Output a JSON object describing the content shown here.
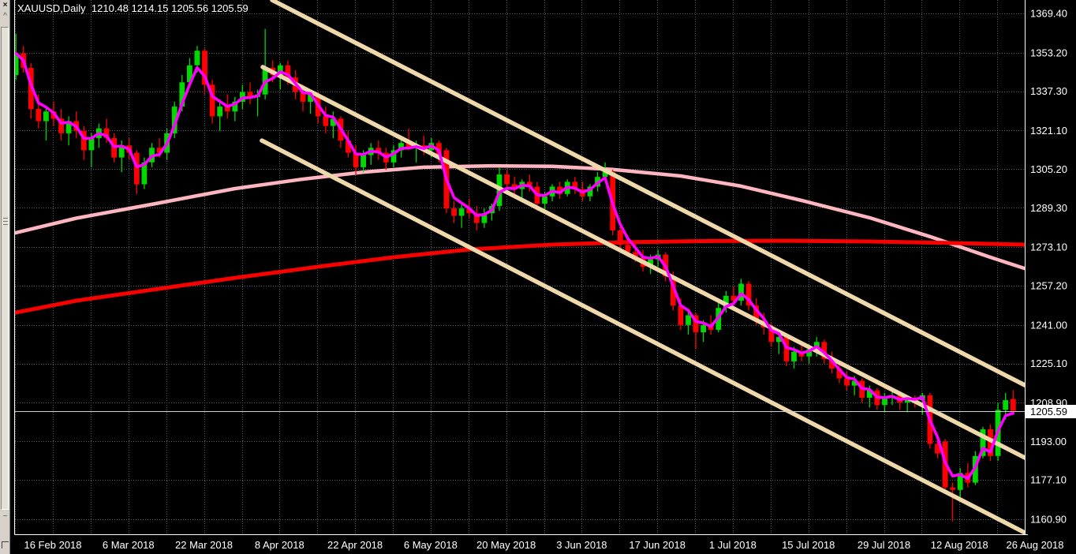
{
  "window": {
    "title": "XAUUSD,Daily  1210.48 1214.15 1205.56 1205.59"
  },
  "side_panel": {
    "close_icon": "×",
    "collapse_icon": "^",
    "bottom_icon": "~"
  },
  "colors": {
    "background": "#000000",
    "grid": "#52616B",
    "bull": "#00D900",
    "bear": "#FF0000",
    "fast_ma": "#FF00FF",
    "slow_ma_pink": "#FFB6C1",
    "long_ma_red": "#F70000",
    "trendline": "#EFD9AB",
    "axis_text": "#FFFFFF",
    "price_line": "#C8CDD0",
    "price_box_bg": "#FFFFFF",
    "price_box_text": "#000000"
  },
  "chart_data": {
    "type": "candlestick",
    "symbol": "XAUUSD",
    "timeframe": "Daily",
    "title": "XAUUSD,Daily",
    "ohlc_readout": {
      "open": "1210.48",
      "high": "1214.15",
      "low": "1205.56",
      "close": "1205.59"
    },
    "y_axis": {
      "ticks": [
        "1369.40",
        "1353.20",
        "1337.30",
        "1321.10",
        "1305.20",
        "1289.30",
        "1273.10",
        "1257.20",
        "1241.00",
        "1225.10",
        "1208.90",
        "1193.00",
        "1177.10",
        "1160.90"
      ],
      "current_price": "1205.59"
    },
    "x_axis": {
      "labels": [
        "16 Feb 2018",
        "6 Mar 2018",
        "22 Mar 2018",
        "8 Apr 2018",
        "22 Apr 2018",
        "6 May 2018",
        "20 May 2018",
        "3 Jun 2018",
        "17 Jun 2018",
        "1 Jul 2018",
        "15 Jul 2018",
        "29 Jul 2018",
        "12 Aug 2018",
        "26 Aug 2018"
      ]
    },
    "grid": {
      "visible": true,
      "style": "dotted"
    },
    "candles": [
      [
        1344,
        1361,
        1342,
        1353
      ],
      [
        1353,
        1356,
        1345,
        1347
      ],
      [
        1347,
        1349,
        1326,
        1330
      ],
      [
        1330,
        1336,
        1322,
        1325
      ],
      [
        1325,
        1331,
        1317,
        1329
      ],
      [
        1329,
        1333,
        1323,
        1326
      ],
      [
        1326,
        1330,
        1317,
        1320
      ],
      [
        1320,
        1327,
        1315,
        1325
      ],
      [
        1325,
        1329,
        1318,
        1321
      ],
      [
        1321,
        1323,
        1309,
        1313
      ],
      [
        1313,
        1320,
        1306,
        1318
      ],
      [
        1318,
        1324,
        1314,
        1322
      ],
      [
        1322,
        1326,
        1316,
        1318
      ],
      [
        1318,
        1320,
        1308,
        1310
      ],
      [
        1310,
        1317,
        1304,
        1315
      ],
      [
        1315,
        1318,
        1309,
        1312
      ],
      [
        1312,
        1313,
        1295,
        1299
      ],
      [
        1299,
        1310,
        1297,
        1308
      ],
      [
        1308,
        1316,
        1306,
        1314
      ],
      [
        1314,
        1318,
        1310,
        1312
      ],
      [
        1312,
        1322,
        1309,
        1320
      ],
      [
        1320,
        1333,
        1318,
        1331
      ],
      [
        1331,
        1344,
        1329,
        1341
      ],
      [
        1341,
        1351,
        1339,
        1348
      ],
      [
        1348,
        1356,
        1345,
        1354
      ],
      [
        1354,
        1355,
        1336,
        1340
      ],
      [
        1340,
        1342,
        1324,
        1327
      ],
      [
        1327,
        1334,
        1321,
        1331
      ],
      [
        1331,
        1336,
        1326,
        1329
      ],
      [
        1329,
        1335,
        1325,
        1333
      ],
      [
        1333,
        1340,
        1330,
        1337
      ],
      [
        1337,
        1341,
        1332,
        1335
      ],
      [
        1335,
        1338,
        1327,
        1336
      ],
      [
        1336,
        1363,
        1334,
        1347
      ],
      [
        1347,
        1350,
        1341,
        1344
      ],
      [
        1344,
        1349,
        1338,
        1348
      ],
      [
        1348,
        1350,
        1340,
        1343
      ],
      [
        1343,
        1346,
        1334,
        1337
      ],
      [
        1337,
        1340,
        1329,
        1333
      ],
      [
        1333,
        1338,
        1328,
        1336
      ],
      [
        1336,
        1337,
        1324,
        1327
      ],
      [
        1327,
        1331,
        1320,
        1323
      ],
      [
        1323,
        1329,
        1318,
        1326
      ],
      [
        1326,
        1327,
        1314,
        1317
      ],
      [
        1317,
        1321,
        1310,
        1312
      ],
      [
        1312,
        1315,
        1303,
        1306
      ],
      [
        1306,
        1313,
        1304,
        1311
      ],
      [
        1311,
        1316,
        1307,
        1314
      ],
      [
        1314,
        1317,
        1309,
        1312
      ],
      [
        1312,
        1314,
        1305,
        1308
      ],
      [
        1308,
        1315,
        1306,
        1313
      ],
      [
        1313,
        1318,
        1310,
        1316
      ],
      [
        1316,
        1322,
        1313,
        1314
      ],
      [
        1314,
        1317,
        1308,
        1315
      ],
      [
        1315,
        1319,
        1311,
        1313
      ],
      [
        1313,
        1318,
        1310,
        1316
      ],
      [
        1316,
        1317,
        1308,
        1311
      ],
      [
        1313,
        1314,
        1287,
        1289
      ],
      [
        1289,
        1292,
        1283,
        1286
      ],
      [
        1286,
        1291,
        1281,
        1289
      ],
      [
        1289,
        1293,
        1285,
        1287
      ],
      [
        1287,
        1290,
        1280,
        1283
      ],
      [
        1283,
        1289,
        1281,
        1287
      ],
      [
        1287,
        1291,
        1284,
        1290
      ],
      [
        1290,
        1306,
        1288,
        1303
      ],
      [
        1303,
        1305,
        1297,
        1299
      ],
      [
        1299,
        1302,
        1294,
        1297
      ],
      [
        1297,
        1301,
        1293,
        1300
      ],
      [
        1300,
        1303,
        1296,
        1298
      ],
      [
        1298,
        1300,
        1288,
        1291
      ],
      [
        1291,
        1296,
        1287,
        1294
      ],
      [
        1294,
        1299,
        1292,
        1298
      ],
      [
        1298,
        1300,
        1293,
        1295
      ],
      [
        1295,
        1301,
        1294,
        1300
      ],
      [
        1300,
        1302,
        1295,
        1297
      ],
      [
        1297,
        1300,
        1292,
        1294
      ],
      [
        1294,
        1299,
        1292,
        1298
      ],
      [
        1298,
        1304,
        1296,
        1302
      ],
      [
        1302,
        1308,
        1300,
        1304
      ],
      [
        1304,
        1305,
        1278,
        1280
      ],
      [
        1280,
        1283,
        1272,
        1274
      ],
      [
        1274,
        1278,
        1269,
        1271
      ],
      [
        1271,
        1275,
        1267,
        1269
      ],
      [
        1269,
        1272,
        1263,
        1265
      ],
      [
        1265,
        1270,
        1262,
        1268
      ],
      [
        1268,
        1272,
        1265,
        1270
      ],
      [
        1270,
        1271,
        1259,
        1261
      ],
      [
        1261,
        1263,
        1247,
        1249
      ],
      [
        1249,
        1252,
        1239,
        1241
      ],
      [
        1241,
        1247,
        1237,
        1245
      ],
      [
        1245,
        1246,
        1231,
        1238
      ],
      [
        1238,
        1243,
        1234,
        1241
      ],
      [
        1241,
        1245,
        1237,
        1239
      ],
      [
        1239,
        1250,
        1238,
        1248
      ],
      [
        1248,
        1255,
        1246,
        1253
      ],
      [
        1253,
        1257,
        1249,
        1251
      ],
      [
        1251,
        1260,
        1249,
        1258
      ],
      [
        1258,
        1259,
        1247,
        1249
      ],
      [
        1249,
        1252,
        1241,
        1243
      ],
      [
        1243,
        1246,
        1237,
        1240
      ],
      [
        1240,
        1242,
        1232,
        1234
      ],
      [
        1234,
        1238,
        1229,
        1236
      ],
      [
        1236,
        1237,
        1224,
        1226
      ],
      [
        1226,
        1232,
        1223,
        1230
      ],
      [
        1230,
        1234,
        1226,
        1228
      ],
      [
        1228,
        1233,
        1225,
        1231
      ],
      [
        1231,
        1236,
        1228,
        1234
      ],
      [
        1234,
        1235,
        1225,
        1227
      ],
      [
        1227,
        1230,
        1221,
        1223
      ],
      [
        1223,
        1226,
        1217,
        1219
      ],
      [
        1219,
        1222,
        1214,
        1216
      ],
      [
        1216,
        1220,
        1212,
        1218
      ],
      [
        1218,
        1219,
        1209,
        1211
      ],
      [
        1211,
        1216,
        1207,
        1214
      ],
      [
        1214,
        1215,
        1206,
        1208
      ],
      [
        1208,
        1213,
        1205,
        1211
      ],
      [
        1211,
        1214,
        1208,
        1212
      ],
      [
        1212,
        1213,
        1206,
        1209
      ],
      [
        1209,
        1212,
        1205,
        1211
      ],
      [
        1211,
        1212,
        1207,
        1210
      ],
      [
        1210,
        1213,
        1204,
        1212
      ],
      [
        1212,
        1213,
        1190,
        1192
      ],
      [
        1192,
        1196,
        1186,
        1188
      ],
      [
        1193,
        1194,
        1172,
        1174
      ],
      [
        1174,
        1176,
        1160,
        1173
      ],
      [
        1173,
        1182,
        1170,
        1180
      ],
      [
        1180,
        1184,
        1174,
        1176
      ],
      [
        1176,
        1189,
        1175,
        1187
      ],
      [
        1187,
        1199,
        1186,
        1198
      ],
      [
        1198,
        1200,
        1185,
        1187
      ],
      [
        1187,
        1209,
        1185,
        1206
      ],
      [
        1206,
        1213,
        1202,
        1210
      ],
      [
        1210.48,
        1214.15,
        1205.56,
        1205.59
      ]
    ],
    "indicators": {
      "fast_ma": {
        "name": "fast-ma-magenta",
        "source": "close",
        "smoothing": 0.5
      },
      "slow_ma_pink": {
        "name": "slow-ma-pink",
        "points": [
          [
            0,
            1279
          ],
          [
            8,
            1285
          ],
          [
            19,
            1291.3
          ],
          [
            29,
            1297.2
          ],
          [
            38,
            1301.1
          ],
          [
            46,
            1304
          ],
          [
            54,
            1306
          ],
          [
            63,
            1306.6
          ],
          [
            71,
            1306.4
          ],
          [
            79,
            1305.1
          ],
          [
            88,
            1302.4
          ],
          [
            96,
            1298.2
          ],
          [
            104,
            1292.3
          ],
          [
            113,
            1285.2
          ],
          [
            121,
            1277.4
          ],
          [
            129,
            1268.9
          ],
          [
            133.6,
            1264.2
          ]
        ]
      },
      "long_ma_red": {
        "name": "long-ma-red",
        "points": [
          [
            0,
            1246.1
          ],
          [
            8,
            1251
          ],
          [
            19,
            1255.9
          ],
          [
            29,
            1260.4
          ],
          [
            40,
            1265
          ],
          [
            50,
            1268.9
          ],
          [
            60,
            1272.1
          ],
          [
            71,
            1274.1
          ],
          [
            81,
            1275.1
          ],
          [
            92,
            1275.6
          ],
          [
            102,
            1275.7
          ],
          [
            113,
            1275.4
          ],
          [
            123,
            1274.8
          ],
          [
            133.6,
            1274.1
          ]
        ]
      }
    },
    "trendlines": [
      {
        "name": "channel-line-upper",
        "points": [
          [
            33.92,
            1374.9
          ],
          [
            133.6,
            1216.1
          ]
        ]
      },
      {
        "name": "channel-line-middle",
        "points": [
          [
            32.67,
            1347.3
          ],
          [
            133.6,
            1186.2
          ]
        ]
      },
      {
        "name": "channel-line-lower",
        "points": [
          [
            32.56,
            1317.0
          ],
          [
            133.6,
            1155.3
          ]
        ]
      }
    ]
  }
}
